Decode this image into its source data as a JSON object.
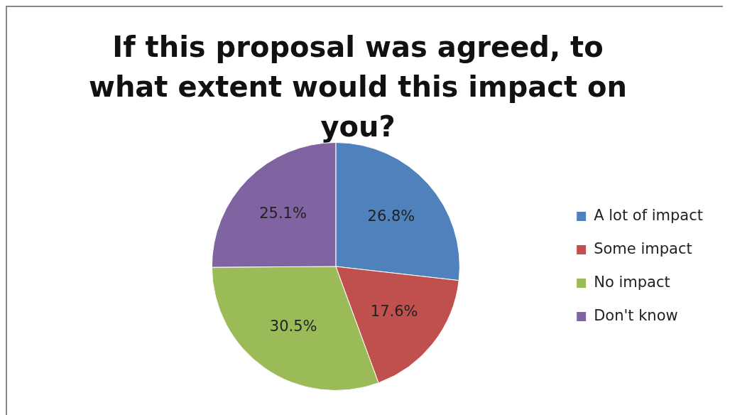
{
  "chart_data": {
    "type": "pie",
    "title": "If this proposal was agreed, to what extent would this impact on you?",
    "categories": [
      "A lot of impact",
      "Some impact",
      "No impact",
      "Don't know"
    ],
    "values": [
      26.8,
      17.6,
      30.5,
      25.1
    ],
    "colors": [
      "#4f81bd",
      "#c0504d",
      "#9bbb59",
      "#8064a2"
    ],
    "value_labels": [
      "26.8%",
      "17.6%",
      "30.5%",
      "25.1%"
    ],
    "legend": "right"
  }
}
